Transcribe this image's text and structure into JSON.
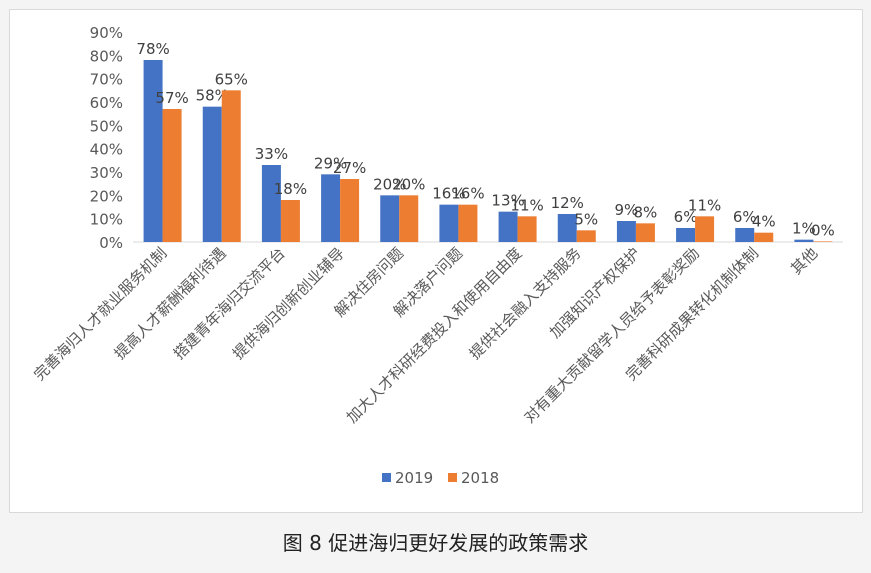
{
  "caption": "图 8 促进海归更好发展的政策需求",
  "chart_data": {
    "type": "bar",
    "categories": [
      "完善海归人才就业服务机制",
      "提高人才薪酬福利待遇",
      "搭建青年海归交流平台",
      "提供海归创新创业辅导",
      "解决住房问题",
      "解决落户问题",
      "加大人才科研经费投入和使用自由度",
      "提供社会融入支持服务",
      "加强知识产权保护",
      "对有重大贡献留学人员给予表彰奖励",
      "完善科研成果转化机制体制",
      "其他"
    ],
    "series": [
      {
        "name": "2019",
        "color": "#4472c4",
        "values": [
          78,
          58,
          33,
          29,
          20,
          16,
          13,
          12,
          9,
          6,
          6,
          1
        ],
        "labels": [
          "78%",
          "58%",
          "33%",
          "29%",
          "20%",
          "16%",
          "13%",
          "12%",
          "9%",
          "6%",
          "6%",
          "1%"
        ]
      },
      {
        "name": "2018",
        "color": "#ed7d31",
        "values": [
          57,
          65,
          18,
          27,
          20,
          16,
          11,
          5,
          8,
          11,
          4,
          0
        ],
        "labels": [
          "57%",
          "65%",
          "18%",
          "27%",
          "20%",
          "16%",
          "11%",
          "5%",
          "8%",
          "11%",
          "4%",
          "0%"
        ]
      }
    ],
    "yticks": [
      "0%",
      "10%",
      "20%",
      "30%",
      "40%",
      "50%",
      "60%",
      "70%",
      "80%",
      "90%"
    ],
    "ylim": [
      0,
      90
    ],
    "grid": false,
    "legend_position": "bottom"
  }
}
